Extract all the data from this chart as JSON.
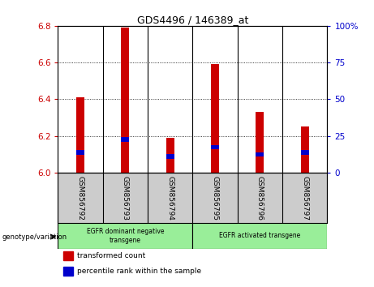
{
  "title": "GDS4496 / 146389_at",
  "samples": [
    "GSM856792",
    "GSM856793",
    "GSM856794",
    "GSM856795",
    "GSM856796",
    "GSM856797"
  ],
  "transformed_counts": [
    6.41,
    6.79,
    6.19,
    6.59,
    6.33,
    6.25
  ],
  "percentile_values": [
    6.11,
    6.18,
    6.09,
    6.14,
    6.1,
    6.11
  ],
  "ylim_left": [
    6.0,
    6.8
  ],
  "yticks_left": [
    6.0,
    6.2,
    6.4,
    6.6,
    6.8
  ],
  "ylim_right": [
    0,
    100
  ],
  "yticks_right": [
    0,
    25,
    50,
    75,
    100
  ],
  "yticklabels_right": [
    "0",
    "25",
    "50",
    "75",
    "100%"
  ],
  "bar_color": "#cc0000",
  "percentile_color": "#0000cc",
  "group1_label": "EGFR dominant negative\ntransgene",
  "group2_label": "EGFR activated transgene",
  "group1_indices": [
    0,
    1,
    2
  ],
  "group2_indices": [
    3,
    4,
    5
  ],
  "group_bg_color": "#99ee99",
  "sample_bg_color": "#cccccc",
  "legend_tc": "transformed count",
  "legend_pr": "percentile rank within the sample",
  "genotype_label": "genotype/variation",
  "left_tick_color": "#cc0000",
  "right_tick_color": "#0000cc",
  "bar_width": 0.18
}
